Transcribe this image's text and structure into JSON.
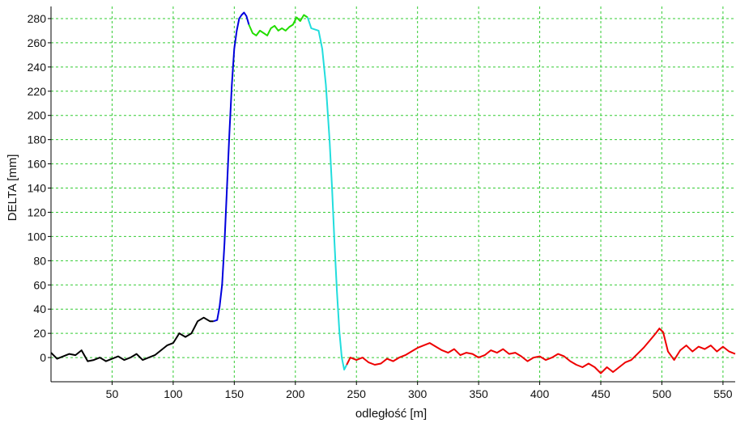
{
  "chart_data": {
    "type": "line",
    "xlabel": "odległość [m]",
    "ylabel": "DELTA [mm]",
    "xlim": [
      0,
      560
    ],
    "ylim": [
      -20,
      290
    ],
    "x_ticks": [
      50,
      100,
      150,
      200,
      250,
      300,
      350,
      400,
      450,
      500,
      550
    ],
    "y_ticks": [
      0,
      20,
      40,
      60,
      80,
      100,
      120,
      140,
      160,
      180,
      200,
      220,
      240,
      260,
      280
    ],
    "grid": true,
    "grid_color": "#33cc33",
    "series": [
      {
        "color": "#000000",
        "points": [
          [
            0,
            4
          ],
          [
            5,
            -1
          ],
          [
            10,
            1
          ],
          [
            15,
            3
          ],
          [
            20,
            2
          ],
          [
            25,
            6
          ],
          [
            30,
            -3
          ],
          [
            35,
            -2
          ],
          [
            40,
            0
          ],
          [
            45,
            -3
          ],
          [
            50,
            -1
          ],
          [
            55,
            1
          ],
          [
            60,
            -2
          ],
          [
            65,
            0
          ],
          [
            70,
            3
          ],
          [
            75,
            -2
          ],
          [
            80,
            0
          ],
          [
            85,
            2
          ],
          [
            90,
            6
          ],
          [
            95,
            10
          ],
          [
            100,
            12
          ],
          [
            105,
            20
          ],
          [
            110,
            17
          ],
          [
            115,
            20
          ],
          [
            120,
            30
          ],
          [
            125,
            33
          ],
          [
            130,
            30
          ],
          [
            133,
            30
          ]
        ]
      },
      {
        "color": "#0000dd",
        "points": [
          [
            133,
            30
          ],
          [
            136,
            31
          ],
          [
            138,
            42
          ],
          [
            140,
            60
          ],
          [
            142,
            95
          ],
          [
            144,
            140
          ],
          [
            146,
            185
          ],
          [
            148,
            225
          ],
          [
            150,
            255
          ],
          [
            152,
            270
          ],
          [
            154,
            280
          ],
          [
            156,
            283
          ],
          [
            158,
            285
          ],
          [
            160,
            282
          ],
          [
            162,
            275
          ]
        ]
      },
      {
        "color": "#22dd00",
        "points": [
          [
            162,
            275
          ],
          [
            165,
            268
          ],
          [
            168,
            266
          ],
          [
            171,
            270
          ],
          [
            174,
            268
          ],
          [
            177,
            266
          ],
          [
            180,
            272
          ],
          [
            183,
            274
          ],
          [
            186,
            270
          ],
          [
            189,
            272
          ],
          [
            192,
            270
          ],
          [
            195,
            273
          ],
          [
            198,
            275
          ],
          [
            201,
            281
          ],
          [
            204,
            278
          ],
          [
            207,
            283
          ],
          [
            210,
            281
          ]
        ]
      },
      {
        "color": "#22dddd",
        "points": [
          [
            210,
            281
          ],
          [
            213,
            272
          ],
          [
            216,
            271
          ],
          [
            219,
            270
          ],
          [
            222,
            255
          ],
          [
            225,
            225
          ],
          [
            228,
            180
          ],
          [
            230,
            140
          ],
          [
            232,
            95
          ],
          [
            234,
            55
          ],
          [
            236,
            22
          ],
          [
            238,
            0
          ],
          [
            240,
            -10
          ],
          [
            242,
            -6
          ]
        ]
      },
      {
        "color": "#ee0000",
        "points": [
          [
            242,
            -6
          ],
          [
            245,
            0
          ],
          [
            250,
            -2
          ],
          [
            255,
            0
          ],
          [
            260,
            -4
          ],
          [
            265,
            -6
          ],
          [
            270,
            -5
          ],
          [
            275,
            -1
          ],
          [
            280,
            -3
          ],
          [
            285,
            0
          ],
          [
            290,
            2
          ],
          [
            295,
            5
          ],
          [
            300,
            8
          ],
          [
            305,
            10
          ],
          [
            310,
            12
          ],
          [
            315,
            9
          ],
          [
            320,
            6
          ],
          [
            325,
            4
          ],
          [
            330,
            7
          ],
          [
            335,
            2
          ],
          [
            340,
            4
          ],
          [
            345,
            3
          ],
          [
            350,
            0
          ],
          [
            355,
            2
          ],
          [
            360,
            6
          ],
          [
            365,
            4
          ],
          [
            370,
            7
          ],
          [
            375,
            3
          ],
          [
            380,
            4
          ],
          [
            385,
            1
          ],
          [
            390,
            -3
          ],
          [
            395,
            0
          ],
          [
            400,
            1
          ],
          [
            405,
            -2
          ],
          [
            410,
            0
          ],
          [
            415,
            3
          ],
          [
            420,
            1
          ],
          [
            425,
            -3
          ],
          [
            430,
            -6
          ],
          [
            435,
            -8
          ],
          [
            440,
            -5
          ],
          [
            445,
            -8
          ],
          [
            450,
            -13
          ],
          [
            455,
            -8
          ],
          [
            460,
            -12
          ],
          [
            465,
            -8
          ],
          [
            470,
            -4
          ],
          [
            475,
            -2
          ],
          [
            480,
            3
          ],
          [
            485,
            8
          ],
          [
            490,
            14
          ],
          [
            495,
            20
          ],
          [
            498,
            24
          ],
          [
            501,
            21
          ],
          [
            505,
            5
          ],
          [
            510,
            -2
          ],
          [
            515,
            6
          ],
          [
            520,
            10
          ],
          [
            525,
            5
          ],
          [
            530,
            9
          ],
          [
            535,
            7
          ],
          [
            540,
            10
          ],
          [
            545,
            5
          ],
          [
            550,
            9
          ],
          [
            555,
            5
          ],
          [
            560,
            3
          ]
        ]
      }
    ]
  }
}
